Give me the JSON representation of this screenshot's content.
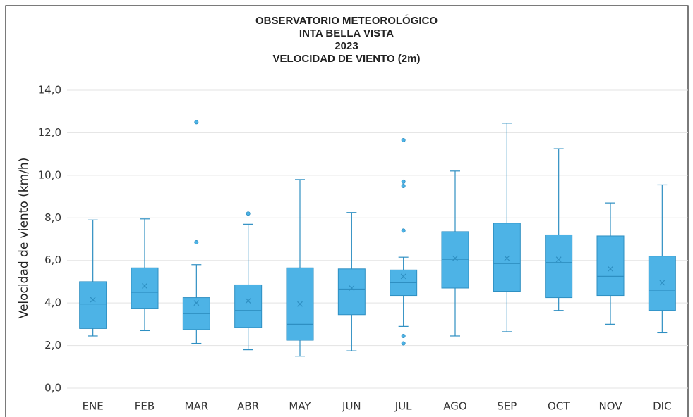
{
  "chart_data": {
    "type": "box",
    "title": [
      "OBSERVATORIO METEOROLÓGICO",
      "INTA BELLA VISTA",
      "2023",
      "VELOCIDAD DE VIENTO (2m)"
    ],
    "y_label": "Velocidad de viento (km/h)",
    "categories": [
      "ENE",
      "FEB",
      "MAR",
      "ABR",
      "MAY",
      "JUN",
      "JUL",
      "AGO",
      "SEP",
      "OCT",
      "NOV",
      "DIC"
    ],
    "color": "#4db3e6",
    "edge_color": "#2e8fc2",
    "grid": true,
    "ylim": [
      0,
      14
    ],
    "yticks": [
      {
        "value": 0,
        "label": "0,0"
      },
      {
        "value": 2,
        "label": "2,0"
      },
      {
        "value": 4,
        "label": "4,0"
      },
      {
        "value": 6,
        "label": "6,0"
      },
      {
        "value": 8,
        "label": "8,0"
      },
      {
        "value": 10,
        "label": "10,0"
      },
      {
        "value": 12,
        "label": "12,0"
      },
      {
        "value": 14,
        "label": "14,0"
      }
    ],
    "boxes": [
      {
        "low": 2.45,
        "q1": 2.8,
        "median": 3.95,
        "q3": 5.0,
        "high": 7.9,
        "mean": 4.15,
        "outliers": []
      },
      {
        "low": 2.7,
        "q1": 3.75,
        "median": 4.5,
        "q3": 5.65,
        "high": 7.95,
        "mean": 4.8,
        "outliers": []
      },
      {
        "low": 2.1,
        "q1": 2.75,
        "median": 3.5,
        "q3": 4.25,
        "high": 5.8,
        "mean": 4.0,
        "outliers": [
          6.85,
          12.5
        ]
      },
      {
        "low": 1.8,
        "q1": 2.85,
        "median": 3.65,
        "q3": 4.85,
        "high": 7.7,
        "mean": 4.1,
        "outliers": [
          8.2
        ]
      },
      {
        "low": 1.5,
        "q1": 2.25,
        "median": 3.0,
        "q3": 5.65,
        "high": 9.8,
        "mean": 3.95,
        "outliers": []
      },
      {
        "low": 1.75,
        "q1": 3.45,
        "median": 4.65,
        "q3": 5.6,
        "high": 8.25,
        "mean": 4.7,
        "outliers": []
      },
      {
        "low": 2.9,
        "q1": 4.35,
        "median": 4.95,
        "q3": 5.55,
        "high": 6.15,
        "mean": 5.25,
        "outliers": [
          11.65,
          9.7,
          9.5,
          7.4,
          2.45,
          2.1
        ]
      },
      {
        "low": 2.45,
        "q1": 4.7,
        "median": 6.05,
        "q3": 7.35,
        "high": 10.2,
        "mean": 6.1,
        "outliers": []
      },
      {
        "low": 2.65,
        "q1": 4.55,
        "median": 5.85,
        "q3": 7.75,
        "high": 12.45,
        "mean": 6.1,
        "outliers": []
      },
      {
        "low": 3.65,
        "q1": 4.25,
        "median": 5.9,
        "q3": 7.2,
        "high": 11.25,
        "mean": 6.05,
        "outliers": []
      },
      {
        "low": 3.0,
        "q1": 4.35,
        "median": 5.25,
        "q3": 7.15,
        "high": 8.7,
        "mean": 5.6,
        "outliers": []
      },
      {
        "low": 2.6,
        "q1": 3.65,
        "median": 4.6,
        "q3": 6.2,
        "high": 9.55,
        "mean": 4.95,
        "outliers": []
      }
    ]
  }
}
